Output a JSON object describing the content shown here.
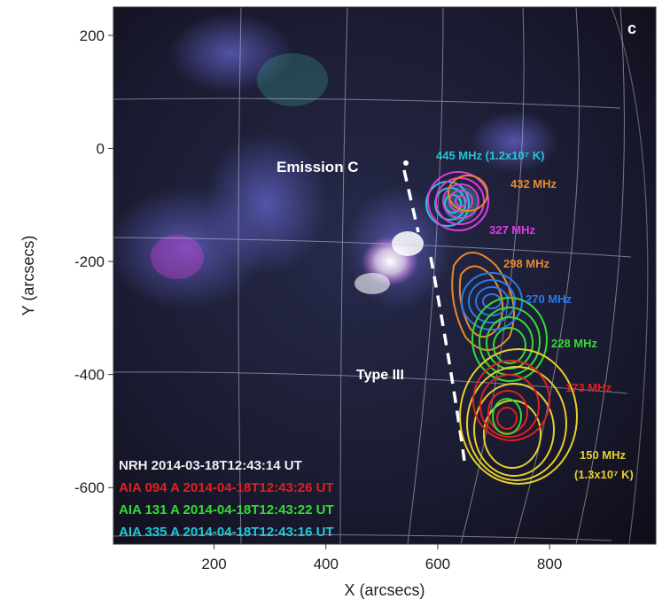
{
  "panel_label": "c",
  "axes": {
    "xlabel": "X (arcsecs)",
    "ylabel": "Y (arcsecs)",
    "x_ticks": [
      200,
      400,
      600,
      800
    ],
    "y_ticks": [
      200,
      0,
      -200,
      -400,
      -600
    ],
    "x_range": [
      20,
      990
    ],
    "y_range": [
      -700,
      250
    ]
  },
  "annotations": {
    "emission": "Emission C",
    "type3": "Type III"
  },
  "frequencies": [
    {
      "label": "445 MHz (1.2x10⁷ K)",
      "color": "#22c8d8"
    },
    {
      "label": "432 MHz",
      "color": "#e88a2a"
    },
    {
      "label": "327 MHz",
      "color": "#e03ae0"
    },
    {
      "label": "298 MHz",
      "color": "#e88a2a"
    },
    {
      "label": "270 MHz",
      "color": "#2a78e8"
    },
    {
      "label": "228 MHz",
      "color": "#33dd33"
    },
    {
      "label": "173 MHz",
      "color": "#e02020"
    },
    {
      "label": "150 MHz",
      "color": "#e8d02a"
    },
    {
      "label": "(1.3x10⁷ K)",
      "color": "#e8d02a"
    }
  ],
  "legend": [
    {
      "text": "NRH 2014-03-18T12:43:14 UT",
      "color": "#f0f0f0"
    },
    {
      "text": "AIA 094 A 2014-04-18T12:43:26 UT",
      "color": "#e02020"
    },
    {
      "text": "AIA 131 A 2014-04-18T12:43:22 UT",
      "color": "#33dd33"
    },
    {
      "text": "AIA 335 A 2014-04-18T12:43:16 UT",
      "color": "#22c8d8"
    }
  ]
}
